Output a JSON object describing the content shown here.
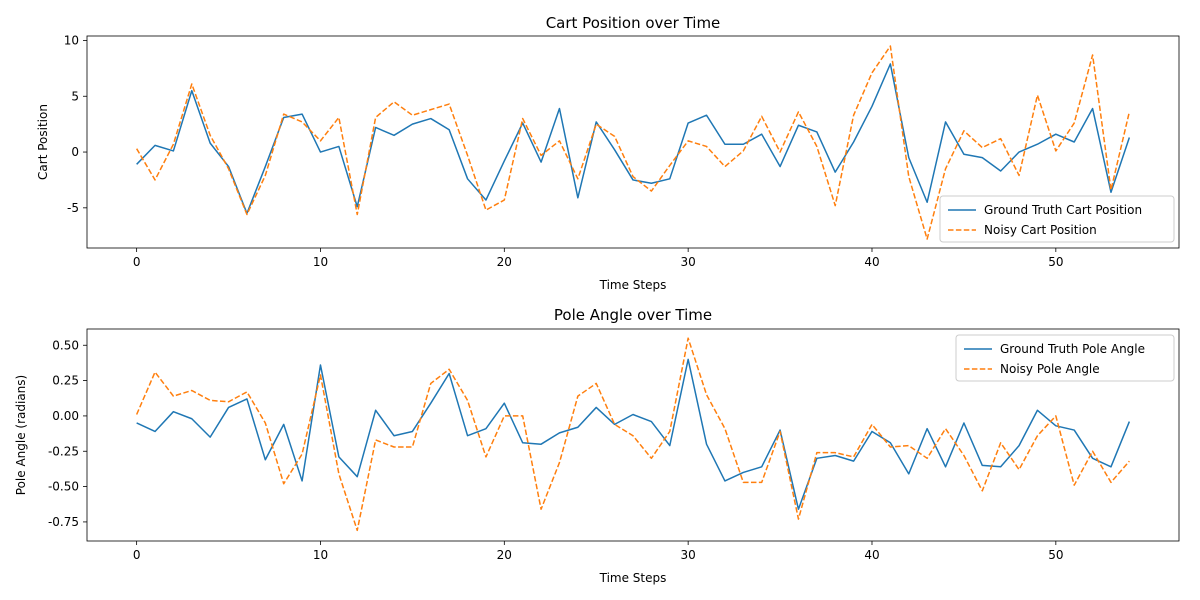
{
  "chart_data": [
    {
      "type": "line",
      "title": "Cart Position over Time",
      "xlabel": "Time Steps",
      "ylabel": "Cart Position",
      "xlim": [
        -2.7,
        56.7
      ],
      "ylim": [
        -8.6,
        10.4
      ],
      "xticks": [
        0,
        10,
        20,
        30,
        40,
        50
      ],
      "yticks": [
        -5,
        0,
        5,
        10
      ],
      "grid": false,
      "legend": "lower-right",
      "x": [
        0,
        1,
        2,
        3,
        4,
        5,
        6,
        7,
        8,
        9,
        10,
        11,
        12,
        13,
        14,
        15,
        16,
        17,
        18,
        19,
        20,
        21,
        22,
        23,
        24,
        25,
        26,
        27,
        28,
        29,
        30,
        31,
        32,
        33,
        34,
        35,
        36,
        37,
        38,
        39,
        40,
        41,
        42,
        43,
        44,
        45,
        46,
        47,
        48,
        49,
        50,
        51,
        52,
        53,
        54
      ],
      "series": [
        {
          "name": "Ground Truth Cart Position",
          "color": "#1f77b4",
          "style": "solid",
          "values": [
            -1.1,
            0.6,
            0.1,
            5.5,
            0.8,
            -1.3,
            -5.5,
            -1.3,
            3.1,
            3.4,
            0.0,
            0.5,
            -4.9,
            2.2,
            1.5,
            2.5,
            3.0,
            2.0,
            -2.4,
            -4.3,
            -0.8,
            2.6,
            -0.9,
            3.9,
            -4.1,
            2.7,
            0.2,
            -2.5,
            -2.8,
            -2.4,
            2.6,
            3.3,
            0.7,
            0.7,
            1.6,
            -1.3,
            2.4,
            1.8,
            -1.8,
            0.9,
            4.1,
            7.9,
            -0.5,
            -4.5,
            2.7,
            -0.2,
            -0.5,
            -1.7,
            0.0,
            0.7,
            1.6,
            0.9,
            3.9,
            -3.6,
            1.3
          ]
        },
        {
          "name": "Noisy Cart Position",
          "color": "#ff7f0e",
          "style": "dashed",
          "values": [
            0.3,
            -2.5,
            0.7,
            6.1,
            1.5,
            -1.5,
            -5.6,
            -2.1,
            3.4,
            2.7,
            1.0,
            3.1,
            -5.6,
            3.1,
            4.5,
            3.3,
            3.8,
            4.3,
            -0.3,
            -5.2,
            -4.3,
            3.0,
            -0.3,
            1.0,
            -2.4,
            2.5,
            1.4,
            -2.2,
            -3.5,
            -1.2,
            1.0,
            0.5,
            -1.3,
            0.1,
            3.2,
            0.0,
            3.6,
            0.5,
            -4.8,
            3.3,
            7.1,
            9.5,
            -2.2,
            -7.8,
            -1.5,
            1.9,
            0.4,
            1.2,
            -2.1,
            5.1,
            0.1,
            2.6,
            8.7,
            -3.4,
            3.6
          ]
        }
      ]
    },
    {
      "type": "line",
      "title": "Pole Angle over Time",
      "xlabel": "Time Steps",
      "ylabel": "Pole Angle (radians)",
      "xlim": [
        -2.7,
        56.7
      ],
      "ylim": [
        -0.885,
        0.615
      ],
      "xticks": [
        0,
        10,
        20,
        30,
        40,
        50
      ],
      "yticks": [
        "-0.75",
        "-0.50",
        "-0.25",
        "0.00",
        "0.25",
        "0.50"
      ],
      "grid": false,
      "legend": "top-right",
      "x": [
        0,
        1,
        2,
        3,
        4,
        5,
        6,
        7,
        8,
        9,
        10,
        11,
        12,
        13,
        14,
        15,
        16,
        17,
        18,
        19,
        20,
        21,
        22,
        23,
        24,
        25,
        26,
        27,
        28,
        29,
        30,
        31,
        32,
        33,
        34,
        35,
        36,
        37,
        38,
        39,
        40,
        41,
        42,
        43,
        44,
        45,
        46,
        47,
        48,
        49,
        50,
        51,
        52,
        53,
        54
      ],
      "series": [
        {
          "name": "Ground Truth Pole Angle",
          "color": "#1f77b4",
          "style": "solid",
          "values": [
            -0.05,
            -0.11,
            0.03,
            -0.02,
            -0.15,
            0.06,
            0.12,
            -0.31,
            -0.06,
            -0.46,
            0.36,
            -0.29,
            -0.43,
            0.04,
            -0.14,
            -0.11,
            0.09,
            0.3,
            -0.14,
            -0.09,
            0.09,
            -0.19,
            -0.2,
            -0.12,
            -0.08,
            0.06,
            -0.06,
            0.01,
            -0.04,
            -0.21,
            0.4,
            -0.2,
            -0.46,
            -0.4,
            -0.36,
            -0.1,
            -0.66,
            -0.3,
            -0.28,
            -0.32,
            -0.11,
            -0.19,
            -0.41,
            -0.09,
            -0.36,
            -0.05,
            -0.35,
            -0.36,
            -0.21,
            0.04,
            -0.07,
            -0.1,
            -0.3,
            -0.36,
            -0.04
          ]
        },
        {
          "name": "Noisy Pole Angle",
          "color": "#ff7f0e",
          "style": "dashed",
          "values": [
            0.01,
            0.31,
            0.14,
            0.18,
            0.11,
            0.1,
            0.17,
            -0.05,
            -0.48,
            -0.27,
            0.29,
            -0.41,
            -0.81,
            -0.17,
            -0.22,
            -0.22,
            0.23,
            0.33,
            0.11,
            -0.29,
            0.0,
            0.0,
            -0.66,
            -0.33,
            0.14,
            0.23,
            -0.06,
            -0.14,
            -0.3,
            -0.11,
            0.55,
            0.15,
            -0.09,
            -0.47,
            -0.47,
            -0.11,
            -0.73,
            -0.26,
            -0.26,
            -0.29,
            -0.06,
            -0.22,
            -0.21,
            -0.3,
            -0.09,
            -0.28,
            -0.53,
            -0.19,
            -0.38,
            -0.14,
            0.0,
            -0.49,
            -0.25,
            -0.47,
            -0.32
          ]
        }
      ]
    }
  ]
}
